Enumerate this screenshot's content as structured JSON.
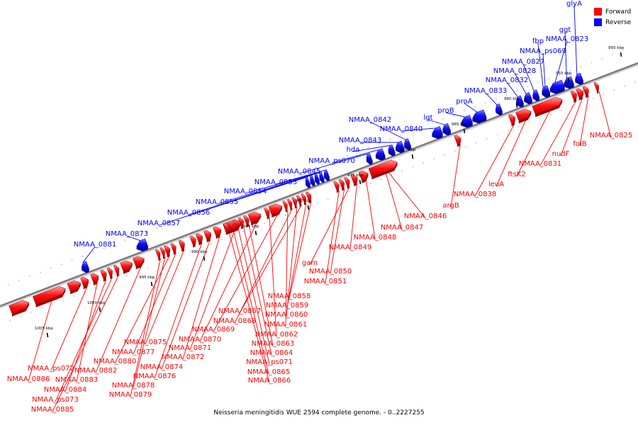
{
  "caption": "Neisseria meningitidis WUE 2594 complete genome. - 0..2227255",
  "legend": [
    {
      "label": "Forward",
      "color": "#ff0000"
    },
    {
      "label": "Reverse",
      "color": "#0000ff"
    }
  ],
  "colors": {
    "forward": "#ff0000",
    "reverse": "#0000ff",
    "axis": "#808080",
    "tick": "#000000"
  },
  "scale_ticks": [
    "950 kbp",
    "955 kbp",
    "960 kbp",
    "965 kbp",
    "970 kbp",
    "975 kbp",
    "980 kbp",
    "985 kbp",
    "990 kbp",
    "995 kbp",
    "1000 kbp",
    "1005 kbp"
  ],
  "reverse_genes": [
    "glyA",
    "ggt",
    "NMAA_0823",
    "fbp",
    "NMAA_ps069",
    "NMAA_0827",
    "NMAA_0828",
    "NMAA_0832",
    "NMAA_0833",
    "proA",
    "proB",
    "lgt",
    "NMAA_0840",
    "NMAA_0842",
    "NMAA_0843",
    "hda",
    "NMAA_ps070",
    "NMAA_0845",
    "NMAA_0853",
    "NMAA_0854",
    "NMAA_0855",
    "NMAA_0856",
    "NMAA_0857",
    "NMAA_0873",
    "NMAA_0881"
  ],
  "forward_genes": [
    "NMAA_0825",
    "folB",
    "nudF",
    "NMAA_0831",
    "ftsK2",
    "leuA",
    "NMAA_0838",
    "argB",
    "NMAA_0846",
    "NMAA_0847",
    "NMAA_0848",
    "NMAA_0849",
    "gam",
    "NMAA_0850",
    "NMAA_0851",
    "NMAA_0858",
    "NMAA_0859",
    "NMAA_0867",
    "NMAA_0860",
    "NMAA_0868",
    "NMAA_0861",
    "NMAA_0869",
    "NMAA_0862",
    "NMAA_0870",
    "NMAA_0863",
    "NMAA_0871",
    "NMAA_0864",
    "NMAA_0875",
    "NMAA_0872",
    "NMAA_ps071",
    "NMAA_0877",
    "NMAA_0880",
    "NMAA_0874",
    "NMAA_0865",
    "NMAA_ps072",
    "NMAA_0882",
    "NMAA_0876",
    "NMAA_0866",
    "NMAA_0886",
    "NMAA_0883",
    "NMAA_0878",
    "NMAA_0884",
    "NMAA_0879",
    "NMAA_ps073",
    "NMAA_0885"
  ]
}
